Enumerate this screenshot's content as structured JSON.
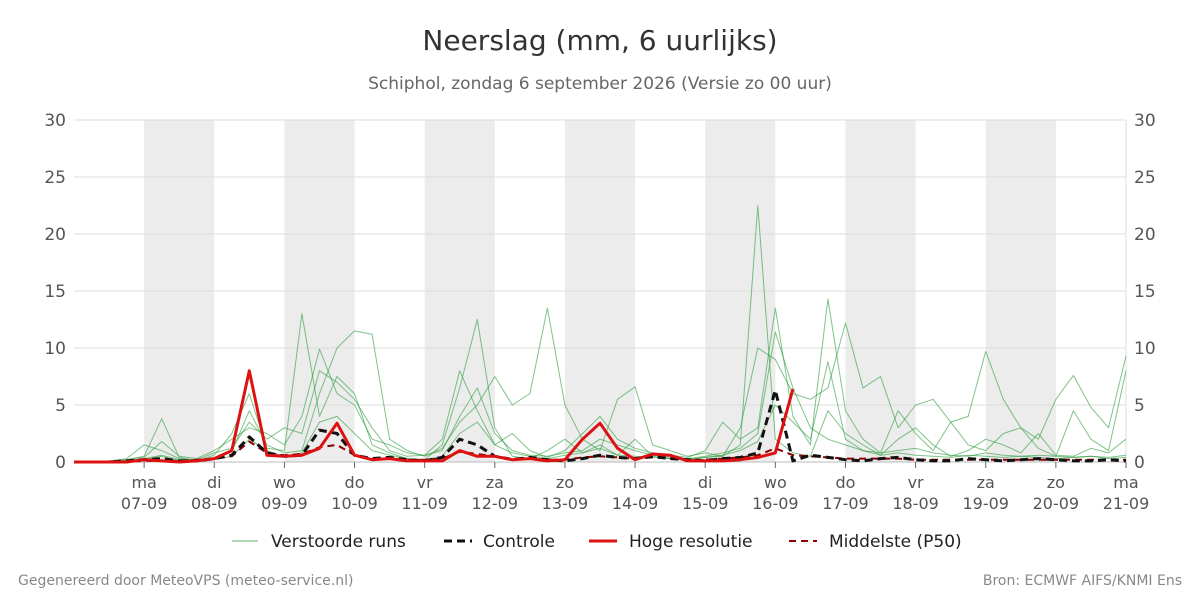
{
  "chart_data": {
    "type": "line",
    "title": "Neerslag (mm, 6 uurlijks)",
    "subtitle": "Schiphol, zondag  6 september 2026 (Versie zo 00 uur)",
    "ylim": [
      0,
      30
    ],
    "yticks": [
      0,
      5,
      10,
      15,
      20,
      25,
      30
    ],
    "x_start": "2026-09-06T00:00",
    "x_end": "2026-09-21T00:00",
    "x_ticks": [
      {
        "day": "ma",
        "date": "07-09"
      },
      {
        "day": "di",
        "date": "08-09"
      },
      {
        "day": "wo",
        "date": "09-09"
      },
      {
        "day": "do",
        "date": "10-09"
      },
      {
        "day": "vr",
        "date": "11-09"
      },
      {
        "day": "za",
        "date": "12-09"
      },
      {
        "day": "zo",
        "date": "13-09"
      },
      {
        "day": "ma",
        "date": "14-09"
      },
      {
        "day": "di",
        "date": "15-09"
      },
      {
        "day": "wo",
        "date": "16-09"
      },
      {
        "day": "do",
        "date": "17-09"
      },
      {
        "day": "vr",
        "date": "18-09"
      },
      {
        "day": "za",
        "date": "19-09"
      },
      {
        "day": "zo",
        "date": "20-09"
      },
      {
        "day": "ma",
        "date": "21-09"
      }
    ],
    "shaded_days": [
      "07-09",
      "09-09",
      "11-09",
      "13-09",
      "15-09",
      "17-09",
      "19-09"
    ],
    "grid": true,
    "legend_position": "bottom",
    "series": [
      {
        "name": "Controle",
        "style": "dashed",
        "color": "#111111",
        "values": [
          0,
          0,
          0,
          0.1,
          0.2,
          0.3,
          0.1,
          0.1,
          0.3,
          0.6,
          2.2,
          0.8,
          0.5,
          0.6,
          2.8,
          2.5,
          0.6,
          0.3,
          0.4,
          0.2,
          0.1,
          0.4,
          2.0,
          1.5,
          0.5,
          0.2,
          0.4,
          0.2,
          0.1,
          0.3,
          0.6,
          0.4,
          0.3,
          0.5,
          0.3,
          0.2,
          0.1,
          0.3,
          0.4,
          0.8,
          6.3,
          0.1,
          0.6,
          0.4,
          0.2,
          0.1,
          0.3,
          0.4,
          0.2,
          0.1,
          0.1,
          0.3,
          0.2,
          0.1,
          0.2,
          0.3,
          0.2,
          0.1,
          0.1,
          0.2,
          0.1
        ]
      },
      {
        "name": "Hoge resolutie",
        "style": "solid",
        "color": "#dd1111",
        "values": [
          0,
          0,
          0,
          0,
          0.2,
          0.1,
          0,
          0.1,
          0.3,
          1.0,
          8.0,
          0.6,
          0.5,
          0.6,
          1.2,
          3.4,
          0.6,
          0.2,
          0.3,
          0.1,
          0.1,
          0.1,
          1.0,
          0.5,
          0.5,
          0.2,
          0.3,
          0.1,
          0.2,
          2.0,
          3.4,
          1.2,
          0.2,
          0.7,
          0.6,
          0.1,
          0.1,
          0.1,
          0.2,
          0.4,
          0.8,
          6.4
        ]
      },
      {
        "name": "Middelste (P50)",
        "style": "dashed",
        "color": "#8b0000",
        "values": [
          0,
          0,
          0,
          0,
          0.1,
          0.1,
          0.1,
          0.2,
          0.3,
          0.5,
          1.8,
          0.8,
          0.6,
          0.7,
          1.3,
          1.5,
          0.6,
          0.3,
          0.3,
          0.2,
          0.2,
          0.3,
          0.9,
          0.7,
          0.5,
          0.3,
          0.3,
          0.2,
          0.2,
          0.4,
          0.5,
          0.4,
          0.3,
          0.4,
          0.3,
          0.2,
          0.2,
          0.3,
          0.4,
          0.6,
          1.2,
          0.6,
          0.5,
          0.4,
          0.3,
          0.3,
          0.3,
          0.3,
          0.2,
          0.2,
          0.2,
          0.2,
          0.2,
          0.2,
          0.2,
          0.2,
          0.2,
          0.2,
          0.2,
          0.2,
          0.2
        ]
      }
    ],
    "ensemble": {
      "name": "Verstoorde runs",
      "color": "#2a9d3a",
      "members": [
        [
          0,
          0,
          0,
          0.2,
          0.5,
          3.8,
          0.4,
          0.1,
          0.6,
          2.5,
          6.0,
          1.2,
          1.0,
          13.0,
          4.0,
          7.5,
          6.0,
          1.5,
          0.8,
          0.3,
          0.2,
          1.5,
          6.5,
          12.5,
          3.0,
          0.5,
          0.3,
          1.0,
          2.0,
          0.8,
          1.5,
          0.6,
          2.0,
          0.5,
          0.3,
          0.2,
          0.4,
          0.5,
          1.5,
          22.5,
          2.0,
          0.8,
          0.5,
          4.5,
          2.5,
          1.5,
          0.6,
          2.0,
          3.0,
          1.5,
          0.5,
          1.0,
          2.0,
          1.5,
          0.8,
          2.5,
          0.6,
          0.5,
          1.2,
          0.8,
          2.0
        ],
        [
          0,
          0,
          0.1,
          0.3,
          1.5,
          1.0,
          0.3,
          0.2,
          0.8,
          1.2,
          3.5,
          2.0,
          3.0,
          2.5,
          8.0,
          7.0,
          5.5,
          3.0,
          1.0,
          0.5,
          0.6,
          2.0,
          8.0,
          4.5,
          1.5,
          2.5,
          1.0,
          0.4,
          1.0,
          2.5,
          4.0,
          2.0,
          1.2,
          0.8,
          0.6,
          0.4,
          1.0,
          3.5,
          2.0,
          3.0,
          13.5,
          4.0,
          1.5,
          14.3,
          4.5,
          2.0,
          0.8,
          4.5,
          2.5,
          1.0,
          3.5,
          1.5,
          1.0,
          2.5,
          3.0,
          1.2,
          0.5,
          4.5,
          2.0,
          1.0,
          8.0
        ],
        [
          0,
          0,
          0,
          0.1,
          0.3,
          0.6,
          0.2,
          0.1,
          0.4,
          0.9,
          4.5,
          1.5,
          0.8,
          1.0,
          6.0,
          10.0,
          11.5,
          11.2,
          2.0,
          1.0,
          0.5,
          1.2,
          3.5,
          5.0,
          7.5,
          5.0,
          6.0,
          13.5,
          5.0,
          2.0,
          1.0,
          5.5,
          6.6,
          1.5,
          1.0,
          0.5,
          0.8,
          0.5,
          3.0,
          10.0,
          9.0,
          6.0,
          5.5,
          6.5,
          12.2,
          6.5,
          7.5,
          3.0,
          5.0,
          5.5,
          3.5,
          4.0,
          9.7,
          5.5,
          3.0,
          2.0,
          5.5,
          7.6,
          4.8,
          3.0,
          9.3
        ],
        [
          0,
          0,
          0.1,
          0.2,
          0.4,
          1.8,
          0.5,
          0.3,
          1.0,
          2.0,
          3.0,
          2.5,
          1.5,
          4.0,
          9.9,
          6.0,
          5.0,
          2.0,
          1.5,
          0.8,
          0.6,
          1.0,
          4.0,
          6.5,
          2.5,
          1.0,
          0.6,
          0.5,
          0.8,
          1.0,
          2.0,
          1.5,
          1.0,
          0.6,
          0.4,
          0.3,
          0.5,
          0.8,
          1.2,
          2.5,
          11.4,
          6.5,
          3.0,
          2.0,
          1.5,
          1.0,
          0.8,
          1.0,
          1.2,
          0.8,
          0.6,
          0.5,
          0.8,
          0.6,
          0.5,
          0.6,
          0.5,
          0.4,
          0.5,
          0.4,
          0.6
        ],
        [
          0,
          0,
          0,
          0.1,
          0.2,
          0.5,
          0.1,
          0.1,
          0.2,
          0.5,
          2.0,
          1.0,
          0.5,
          0.8,
          3.5,
          4.0,
          2.5,
          1.0,
          0.6,
          0.3,
          0.2,
          0.5,
          2.5,
          3.5,
          1.5,
          0.8,
          0.5,
          0.3,
          0.6,
          0.8,
          1.2,
          0.6,
          0.5,
          0.4,
          0.3,
          0.2,
          0.4,
          0.6,
          1.0,
          1.8,
          5.0,
          3.5,
          2.0,
          8.8,
          2.0,
          1.0,
          0.6,
          0.8,
          0.6,
          0.5,
          0.4,
          0.6,
          0.5,
          0.4,
          0.5,
          0.4,
          0.3,
          0.4,
          0.5,
          0.3,
          0.4
        ]
      ]
    }
  },
  "legend": [
    {
      "label": "Verstoorde runs"
    },
    {
      "label": "Controle"
    },
    {
      "label": "Hoge resolutie"
    },
    {
      "label": "Middelste (P50)"
    }
  ],
  "footer": {
    "left": "Gegenereerd door MeteoVPS (meteo-service.nl)",
    "right": "Bron: ECMWF AIFS/KNMI Ens"
  }
}
